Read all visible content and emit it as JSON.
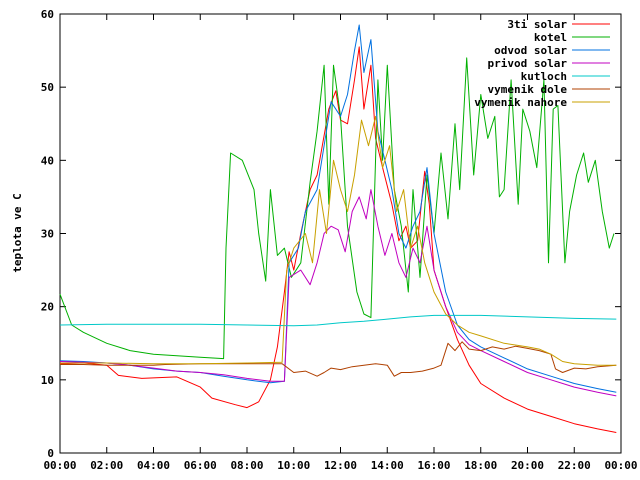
{
  "chart_data": {
    "type": "line",
    "ylabel": "teplota ve C",
    "xlabel": "",
    "title": "",
    "xlim": [
      0,
      24
    ],
    "ylim": [
      0,
      60
    ],
    "x_ticks": [
      "00:00",
      "02:00",
      "04:00",
      "06:00",
      "08:00",
      "10:00",
      "12:00",
      "14:00",
      "16:00",
      "18:00",
      "20:00",
      "22:00",
      "00:00"
    ],
    "y_ticks": [
      "0",
      "10",
      "20",
      "30",
      "40",
      "50",
      "60"
    ],
    "grid": false,
    "legend_position": "top-right",
    "series": [
      {
        "name": "3ti solar",
        "color": "#ff0000",
        "points": [
          [
            0,
            12.2
          ],
          [
            1,
            12.3
          ],
          [
            2,
            12.0
          ],
          [
            2.5,
            10.6
          ],
          [
            3.5,
            10.2
          ],
          [
            5,
            10.4
          ],
          [
            6,
            9.0
          ],
          [
            6.5,
            7.5
          ],
          [
            7.5,
            6.6
          ],
          [
            8,
            6.2
          ],
          [
            8.5,
            7.0
          ],
          [
            9,
            10.0
          ],
          [
            9.3,
            14.5
          ],
          [
            9.6,
            22.0
          ],
          [
            9.8,
            27.5
          ],
          [
            10,
            25.0
          ],
          [
            10.3,
            30.0
          ],
          [
            10.7,
            36.0
          ],
          [
            11,
            38.0
          ],
          [
            11.5,
            47.0
          ],
          [
            11.8,
            49.5
          ],
          [
            12,
            45.5
          ],
          [
            12.3,
            45.0
          ],
          [
            12.6,
            51.0
          ],
          [
            12.8,
            55.5
          ],
          [
            13,
            47.0
          ],
          [
            13.3,
            53.0
          ],
          [
            13.5,
            43.0
          ],
          [
            13.8,
            39.0
          ],
          [
            14.2,
            34.0
          ],
          [
            14.5,
            29.0
          ],
          [
            14.8,
            31.0
          ],
          [
            15,
            28.0
          ],
          [
            15.3,
            29.0
          ],
          [
            15.6,
            38.5
          ],
          [
            15.8,
            34.0
          ],
          [
            16,
            25.0
          ],
          [
            16.5,
            20.0
          ],
          [
            17,
            15.5
          ],
          [
            17.5,
            12.0
          ],
          [
            18,
            9.5
          ],
          [
            19,
            7.5
          ],
          [
            20,
            6.0
          ],
          [
            21,
            5.0
          ],
          [
            22,
            4.0
          ],
          [
            23,
            3.3
          ],
          [
            23.8,
            2.8
          ]
        ]
      },
      {
        "name": "kotel",
        "color": "#00b000",
        "points": [
          [
            0,
            21.7
          ],
          [
            0.5,
            17.5
          ],
          [
            1,
            16.5
          ],
          [
            2,
            15.0
          ],
          [
            3,
            14.0
          ],
          [
            4,
            13.5
          ],
          [
            5,
            13.3
          ],
          [
            6,
            13.1
          ],
          [
            7,
            12.9
          ],
          [
            7.1,
            28.0
          ],
          [
            7.3,
            41.0
          ],
          [
            7.8,
            40.0
          ],
          [
            8.3,
            36.0
          ],
          [
            8.5,
            30.0
          ],
          [
            8.8,
            23.5
          ],
          [
            9,
            36.0
          ],
          [
            9.3,
            27.0
          ],
          [
            9.6,
            28.0
          ],
          [
            9.9,
            24.0
          ],
          [
            10.3,
            26.0
          ],
          [
            10.7,
            37.0
          ],
          [
            11,
            44.0
          ],
          [
            11.3,
            53.0
          ],
          [
            11.5,
            34.0
          ],
          [
            11.7,
            53.0
          ],
          [
            12,
            46.0
          ],
          [
            12.3,
            31.0
          ],
          [
            12.7,
            22.0
          ],
          [
            13,
            19.0
          ],
          [
            13.3,
            18.5
          ],
          [
            13.6,
            51.0
          ],
          [
            13.8,
            40.0
          ],
          [
            14,
            53.0
          ],
          [
            14.3,
            36.0
          ],
          [
            14.6,
            31.0
          ],
          [
            14.9,
            22.0
          ],
          [
            15.1,
            36.0
          ],
          [
            15.4,
            24.0
          ],
          [
            15.7,
            38.0
          ],
          [
            16,
            30.0
          ],
          [
            16.3,
            41.0
          ],
          [
            16.6,
            32.0
          ],
          [
            16.9,
            45.0
          ],
          [
            17.1,
            36.0
          ],
          [
            17.4,
            54.0
          ],
          [
            17.7,
            38.0
          ],
          [
            18,
            49.0
          ],
          [
            18.3,
            43.0
          ],
          [
            18.6,
            46.0
          ],
          [
            18.8,
            35.0
          ],
          [
            19,
            36.0
          ],
          [
            19.3,
            51.0
          ],
          [
            19.6,
            34.0
          ],
          [
            19.8,
            47.0
          ],
          [
            20.1,
            44.0
          ],
          [
            20.4,
            39.0
          ],
          [
            20.7,
            51.0
          ],
          [
            20.9,
            26.0
          ],
          [
            21.1,
            47.0
          ],
          [
            21.3,
            47.5
          ],
          [
            21.6,
            26.0
          ],
          [
            21.8,
            33.0
          ],
          [
            22.1,
            38.0
          ],
          [
            22.4,
            41.0
          ],
          [
            22.6,
            37.0
          ],
          [
            22.9,
            40.0
          ],
          [
            23.2,
            33.0
          ],
          [
            23.5,
            28.0
          ],
          [
            23.7,
            30.0
          ]
        ]
      },
      {
        "name": "odvod solar",
        "color": "#0070e0",
        "points": [
          [
            0,
            12.6
          ],
          [
            1,
            12.5
          ],
          [
            2,
            12.3
          ],
          [
            3,
            12.0
          ],
          [
            4,
            11.5
          ],
          [
            5,
            11.2
          ],
          [
            6,
            11.0
          ],
          [
            7,
            10.5
          ],
          [
            8,
            10.0
          ],
          [
            9,
            9.6
          ],
          [
            9.6,
            9.8
          ],
          [
            9.8,
            26.0
          ],
          [
            10.2,
            28.0
          ],
          [
            10.5,
            33.0
          ],
          [
            11,
            36.0
          ],
          [
            11.3,
            42.0
          ],
          [
            11.6,
            48.0
          ],
          [
            12,
            46.0
          ],
          [
            12.3,
            49.0
          ],
          [
            12.6,
            55.0
          ],
          [
            12.8,
            58.5
          ],
          [
            13,
            52.0
          ],
          [
            13.3,
            56.5
          ],
          [
            13.6,
            44.0
          ],
          [
            13.9,
            40.0
          ],
          [
            14.2,
            36.0
          ],
          [
            14.5,
            30.0
          ],
          [
            14.8,
            28.0
          ],
          [
            15.1,
            31.0
          ],
          [
            15.4,
            33.0
          ],
          [
            15.7,
            39.0
          ],
          [
            16,
            30.0
          ],
          [
            16.5,
            22.0
          ],
          [
            17,
            17.5
          ],
          [
            17.5,
            15.5
          ],
          [
            18,
            14.5
          ],
          [
            19,
            13.0
          ],
          [
            20,
            11.5
          ],
          [
            21,
            10.5
          ],
          [
            22,
            9.5
          ],
          [
            23,
            8.8
          ],
          [
            23.8,
            8.3
          ]
        ]
      },
      {
        "name": "privod solar",
        "color": "#c000c0",
        "points": [
          [
            0,
            12.5
          ],
          [
            1,
            12.4
          ],
          [
            2,
            12.3
          ],
          [
            3,
            12.0
          ],
          [
            4,
            11.6
          ],
          [
            5,
            11.2
          ],
          [
            6,
            11.0
          ],
          [
            7,
            10.7
          ],
          [
            8,
            10.2
          ],
          [
            9,
            9.8
          ],
          [
            9.6,
            9.8
          ],
          [
            9.8,
            24.0
          ],
          [
            10.3,
            25.0
          ],
          [
            10.7,
            23.0
          ],
          [
            11,
            26.0
          ],
          [
            11.3,
            30.0
          ],
          [
            11.6,
            31.0
          ],
          [
            11.9,
            30.5
          ],
          [
            12.2,
            27.5
          ],
          [
            12.5,
            33.0
          ],
          [
            12.8,
            35.0
          ],
          [
            13.1,
            32.0
          ],
          [
            13.3,
            36.0
          ],
          [
            13.6,
            31.0
          ],
          [
            13.9,
            27.0
          ],
          [
            14.2,
            30.0
          ],
          [
            14.5,
            26.0
          ],
          [
            14.8,
            24.0
          ],
          [
            15.1,
            28.0
          ],
          [
            15.4,
            26.0
          ],
          [
            15.7,
            31.0
          ],
          [
            16,
            25.0
          ],
          [
            16.5,
            20.0
          ],
          [
            17,
            16.5
          ],
          [
            17.5,
            14.8
          ],
          [
            18,
            14.0
          ],
          [
            19,
            12.5
          ],
          [
            20,
            11.0
          ],
          [
            21,
            10.0
          ],
          [
            22,
            9.0
          ],
          [
            23,
            8.3
          ],
          [
            23.8,
            7.8
          ]
        ]
      },
      {
        "name": "kutloch",
        "color": "#00c8c8",
        "points": [
          [
            0,
            17.5
          ],
          [
            2,
            17.6
          ],
          [
            4,
            17.6
          ],
          [
            6,
            17.6
          ],
          [
            8,
            17.5
          ],
          [
            10,
            17.4
          ],
          [
            11,
            17.5
          ],
          [
            12,
            17.8
          ],
          [
            13,
            18.0
          ],
          [
            14,
            18.3
          ],
          [
            15,
            18.6
          ],
          [
            16,
            18.8
          ],
          [
            18,
            18.8
          ],
          [
            20,
            18.6
          ],
          [
            22,
            18.4
          ],
          [
            23.8,
            18.3
          ]
        ]
      },
      {
        "name": "vymenik dole",
        "color": "#b04000",
        "points": [
          [
            0,
            12.1
          ],
          [
            1,
            12.1
          ],
          [
            2,
            12.0
          ],
          [
            4,
            12.0
          ],
          [
            4.5,
            12.1
          ],
          [
            6,
            12.2
          ],
          [
            8,
            12.2
          ],
          [
            9.5,
            12.2
          ],
          [
            10,
            11.0
          ],
          [
            10.5,
            11.2
          ],
          [
            11,
            10.5
          ],
          [
            11.3,
            11.0
          ],
          [
            11.6,
            11.6
          ],
          [
            12,
            11.4
          ],
          [
            12.5,
            11.8
          ],
          [
            13,
            12.0
          ],
          [
            13.5,
            12.2
          ],
          [
            14,
            12.0
          ],
          [
            14.3,
            10.5
          ],
          [
            14.6,
            11.0
          ],
          [
            15,
            11.0
          ],
          [
            15.5,
            11.2
          ],
          [
            16,
            11.6
          ],
          [
            16.3,
            12.0
          ],
          [
            16.6,
            15.0
          ],
          [
            16.9,
            14.0
          ],
          [
            17.2,
            15.2
          ],
          [
            17.5,
            14.2
          ],
          [
            18,
            14.0
          ],
          [
            18.5,
            14.5
          ],
          [
            19,
            14.2
          ],
          [
            19.5,
            14.6
          ],
          [
            20,
            14.3
          ],
          [
            20.5,
            14.0
          ],
          [
            21,
            13.5
          ],
          [
            21.2,
            11.5
          ],
          [
            21.5,
            11.0
          ],
          [
            22,
            11.6
          ],
          [
            22.5,
            11.5
          ],
          [
            23,
            11.8
          ],
          [
            23.8,
            12.0
          ]
        ]
      },
      {
        "name": "vymenik nahore",
        "color": "#c8a000",
        "points": [
          [
            0,
            12.3
          ],
          [
            2,
            12.3
          ],
          [
            4,
            12.2
          ],
          [
            6,
            12.2
          ],
          [
            8,
            12.3
          ],
          [
            9.5,
            12.4
          ],
          [
            9.7,
            25.0
          ],
          [
            10,
            28.0
          ],
          [
            10.5,
            30.0
          ],
          [
            10.8,
            26.0
          ],
          [
            11.1,
            36.0
          ],
          [
            11.4,
            30.0
          ],
          [
            11.7,
            40.0
          ],
          [
            12,
            36.0
          ],
          [
            12.3,
            33.0
          ],
          [
            12.6,
            38.0
          ],
          [
            12.9,
            45.5
          ],
          [
            13.2,
            42.0
          ],
          [
            13.5,
            46.0
          ],
          [
            13.8,
            39.0
          ],
          [
            14.1,
            42.0
          ],
          [
            14.4,
            33.0
          ],
          [
            14.7,
            36.0
          ],
          [
            15,
            28.0
          ],
          [
            15.3,
            31.0
          ],
          [
            15.6,
            26.0
          ],
          [
            16,
            22.0
          ],
          [
            16.5,
            19.0
          ],
          [
            17,
            17.5
          ],
          [
            17.5,
            16.5
          ],
          [
            18,
            16.0
          ],
          [
            19,
            15.0
          ],
          [
            20,
            14.5
          ],
          [
            20.5,
            14.2
          ],
          [
            21,
            13.5
          ],
          [
            21.5,
            12.5
          ],
          [
            22,
            12.2
          ],
          [
            23,
            12.0
          ],
          [
            23.8,
            12.0
          ]
        ]
      }
    ]
  }
}
